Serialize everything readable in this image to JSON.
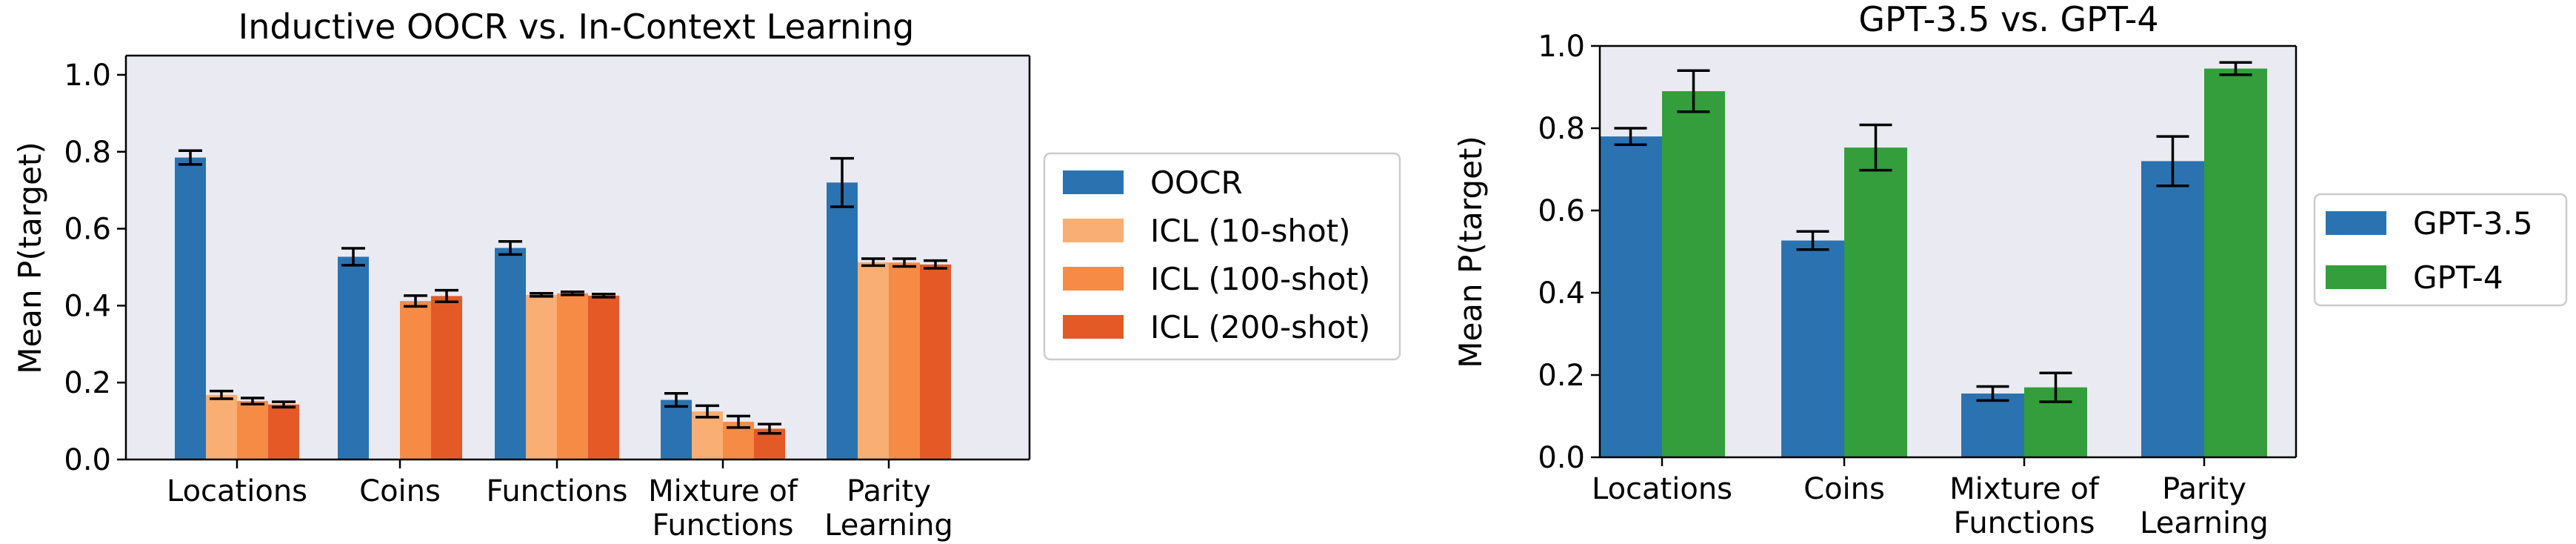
{
  "chart_data": [
    {
      "type": "bar",
      "title": "Inductive OOCR vs. In-Context Learning",
      "xlabel": "",
      "ylabel": "Mean P(target)",
      "ylim": [
        0,
        1.05
      ],
      "yticks": [
        "0.0",
        "0.2",
        "0.4",
        "0.6",
        "0.8",
        "1.0"
      ],
      "ytick_values": [
        0,
        0.2,
        0.4,
        0.6,
        0.8,
        1.0
      ],
      "grid": false,
      "legend_position": "right-outside",
      "categories": [
        [
          "Locations"
        ],
        [
          "Coins"
        ],
        [
          "Functions"
        ],
        [
          "Mixture of",
          "Functions"
        ],
        [
          "Parity",
          "Learning"
        ]
      ],
      "series": [
        {
          "name": "OOCR",
          "color": "#2b73b0",
          "values": [
            0.785,
            0.527,
            0.55,
            0.155,
            0.72
          ],
          "err": [
            0.018,
            0.022,
            0.017,
            0.017,
            0.063
          ]
        },
        {
          "name": "ICL (10-shot)",
          "color": "#f9ae73",
          "values": [
            0.168,
            null,
            0.428,
            0.125,
            0.513
          ],
          "err": [
            0.01,
            null,
            0.004,
            0.015,
            0.009
          ]
        },
        {
          "name": "ICL (100-shot)",
          "color": "#f68b45",
          "values": [
            0.152,
            0.412,
            0.432,
            0.098,
            0.512
          ],
          "err": [
            0.008,
            0.014,
            0.004,
            0.015,
            0.01
          ]
        },
        {
          "name": "ICL (200-shot)",
          "color": "#e35a26",
          "values": [
            0.143,
            0.425,
            0.426,
            0.08,
            0.507
          ],
          "err": [
            0.007,
            0.015,
            0.004,
            0.012,
            0.01
          ]
        }
      ]
    },
    {
      "type": "bar",
      "title": "GPT-3.5 vs. GPT-4",
      "xlabel": "",
      "ylabel": "Mean P(target)",
      "ylim": [
        0,
        1.0
      ],
      "yticks": [
        "0.0",
        "0.2",
        "0.4",
        "0.6",
        "0.8",
        "1.0"
      ],
      "ytick_values": [
        0,
        0.2,
        0.4,
        0.6,
        0.8,
        1.0
      ],
      "grid": false,
      "legend_position": "right-outside",
      "categories": [
        [
          "Locations"
        ],
        [
          "Coins"
        ],
        [
          "Mixture of",
          "Functions"
        ],
        [
          "Parity",
          "Learning"
        ]
      ],
      "series": [
        {
          "name": "GPT-3.5",
          "color": "#2b73b0",
          "values": [
            0.78,
            0.527,
            0.155,
            0.72
          ],
          "err": [
            0.02,
            0.022,
            0.017,
            0.06
          ]
        },
        {
          "name": "GPT-4",
          "color": "#339e3b",
          "values": [
            0.89,
            0.753,
            0.17,
            0.945
          ],
          "err": [
            0.05,
            0.055,
            0.035,
            0.015
          ]
        }
      ]
    }
  ]
}
